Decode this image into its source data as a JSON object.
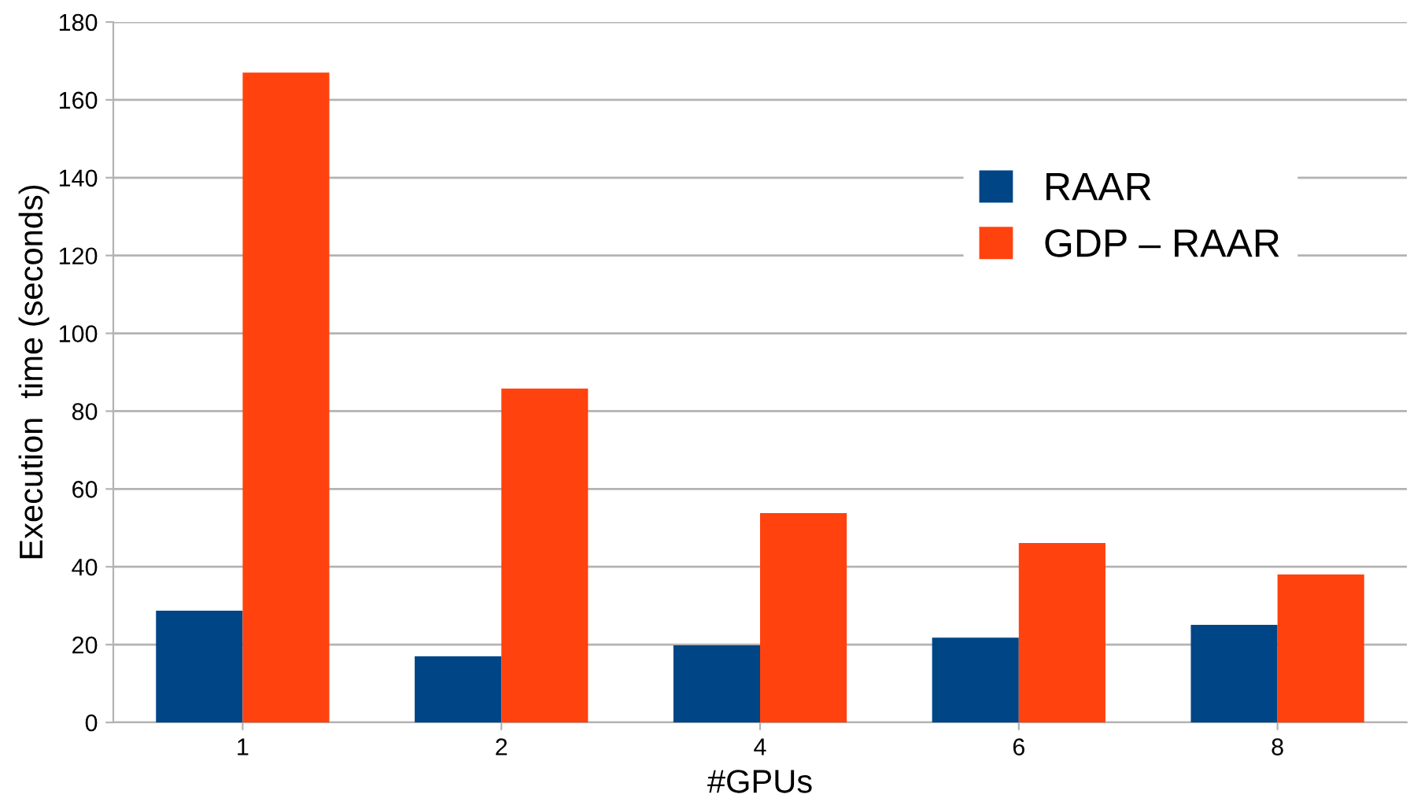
{
  "chart_data": {
    "type": "bar",
    "xlabel": "#GPUs",
    "ylabel": "Execution  time (seconds)",
    "categories": [
      "1",
      "2",
      "4",
      "6",
      "8"
    ],
    "series": [
      {
        "name": "RAAR",
        "color": "#004586",
        "values": [
          28.7,
          17,
          19.8,
          21.8,
          25.1
        ]
      },
      {
        "name": "GDP – RAAR",
        "color": "#ff420e",
        "values": [
          167,
          85.8,
          53.8,
          46.1,
          38
        ]
      }
    ],
    "ylim": [
      0,
      180
    ],
    "yticks": [
      0,
      20,
      40,
      60,
      80,
      100,
      120,
      140,
      160,
      180
    ],
    "grid": "y",
    "legend": "right"
  }
}
